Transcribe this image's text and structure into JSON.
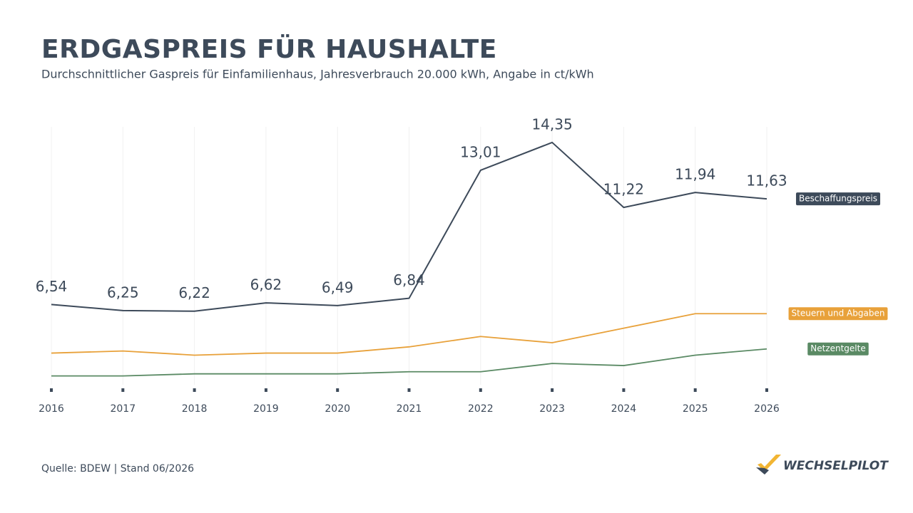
{
  "chart_data": {
    "type": "line",
    "title": "ERDGASPREIS FÜR HAUSHALTE",
    "subtitle": "Durchschnittlicher Gaspreis für Einfamilienhaus, Jahresverbrauch 20.000 kWh, Angabe in ct/kWh",
    "categories": [
      "2016",
      "2017",
      "2018",
      "2019",
      "2020",
      "2021",
      "2022",
      "2023",
      "2024",
      "2025",
      "2026"
    ],
    "ylim": [
      2.4,
      15.0
    ],
    "series": [
      {
        "name": "Beschaffungspreis",
        "color": "#3d4a5a",
        "values": [
          6.54,
          6.25,
          6.22,
          6.62,
          6.49,
          6.84,
          13.01,
          14.35,
          11.22,
          11.94,
          11.63
        ],
        "value_labels": [
          "6,54",
          "6,25",
          "6,22",
          "6,62",
          "6,49",
          "6,84",
          "13,01",
          "14,35",
          "11,22",
          "11,94",
          "11,63"
        ]
      },
      {
        "name": "Steuern und Abgaben",
        "color": "#e8a13a",
        "values": [
          4.2,
          4.3,
          4.1,
          4.2,
          4.2,
          4.5,
          5.0,
          4.7,
          5.4,
          6.1,
          6.1
        ]
      },
      {
        "name": "Netzentgelte",
        "color": "#5a8a64",
        "values": [
          3.1,
          3.1,
          3.2,
          3.2,
          3.2,
          3.3,
          3.3,
          3.7,
          3.6,
          4.1,
          4.4
        ]
      }
    ],
    "source": "Quelle: BDEW | Stand 06/2026",
    "brand": "WECHSELPILOT"
  }
}
